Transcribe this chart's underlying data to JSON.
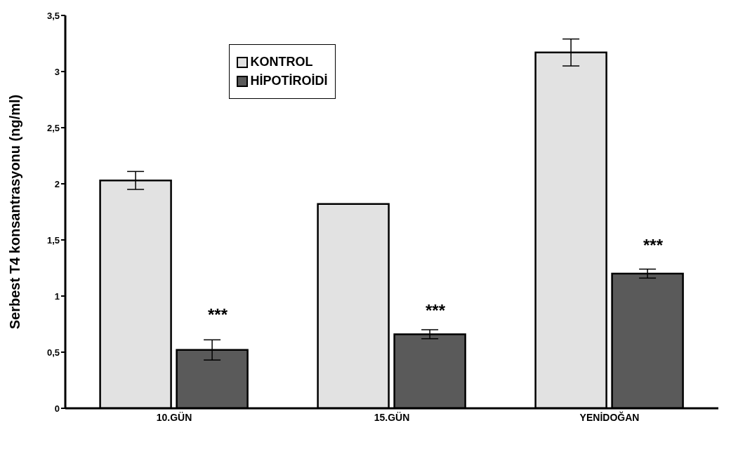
{
  "chart_data": {
    "type": "bar",
    "ylabel": "Serbest T4 konsantrasyonu (ng/ml)",
    "categories": [
      "10.GÜN",
      "15.GÜN",
      "YENİDOĞAN"
    ],
    "series": [
      {
        "name": "KONTROL",
        "color": "#e2e2e2",
        "values": [
          2.03,
          1.82,
          3.17
        ],
        "errors": [
          0.08,
          null,
          0.12
        ]
      },
      {
        "name": "HİPOTİROİDİ",
        "color": "#5a5a5a",
        "values": [
          0.52,
          0.66,
          1.2
        ],
        "errors": [
          0.09,
          0.04,
          0.04
        ]
      }
    ],
    "ylim": [
      0,
      3.5
    ],
    "yticks": [
      0,
      {
        "value": 0.5,
        "label": "0,5"
      },
      1,
      {
        "value": 1.5,
        "label": "1,5"
      },
      2,
      {
        "value": 2.5,
        "label": "2,5"
      },
      3,
      {
        "value": 3.5,
        "label": "3,5"
      }
    ],
    "grid": false,
    "legend": "top left",
    "annotations": [
      {
        "text": "***",
        "x": "10.GÜN",
        "y": 0.82
      },
      {
        "text": "***",
        "x": "15.GÜN",
        "y": 0.86
      },
      {
        "text": "***",
        "x": "YENİDOĞAN",
        "y": 1.44
      }
    ]
  }
}
